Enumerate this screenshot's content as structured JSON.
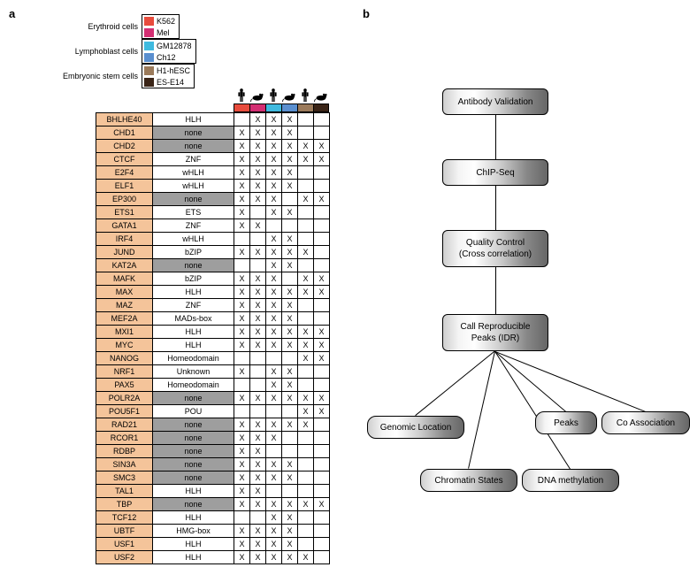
{
  "panels": {
    "a_label": "a",
    "b_label": "b"
  },
  "legend": {
    "groups": [
      {
        "label": "Erythroid cells",
        "items": [
          {
            "name": "K562",
            "color": "#e84c3d"
          },
          {
            "name": "Mel",
            "color": "#d32e72"
          }
        ]
      },
      {
        "label": "Lymphoblast cells",
        "items": [
          {
            "name": "GM12878",
            "color": "#3fbadf"
          },
          {
            "name": "Ch12",
            "color": "#5a8fcf"
          }
        ]
      },
      {
        "label": "Embryonic stem cells",
        "items": [
          {
            "name": "H1-hESC",
            "color": "#9b7a5a"
          },
          {
            "name": "ES-E14",
            "color": "#3a2417"
          }
        ]
      }
    ]
  },
  "columns": [
    {
      "color": "#e84c3d",
      "species": "human"
    },
    {
      "color": "#d32e72",
      "species": "mouse"
    },
    {
      "color": "#3fbadf",
      "species": "human"
    },
    {
      "color": "#5a8fcf",
      "species": "mouse"
    },
    {
      "color": "#9b7a5a",
      "species": "human"
    },
    {
      "color": "#3a2417",
      "species": "mouse"
    }
  ],
  "rows": [
    {
      "gene": "BHLHE40",
      "domain": "HLH",
      "none": false,
      "cells": [
        "",
        "X",
        "X",
        "X",
        "",
        ""
      ]
    },
    {
      "gene": "CHD1",
      "domain": "none",
      "none": true,
      "cells": [
        "X",
        "X",
        "X",
        "X",
        "",
        ""
      ]
    },
    {
      "gene": "CHD2",
      "domain": "none",
      "none": true,
      "cells": [
        "X",
        "X",
        "X",
        "X",
        "X",
        "X"
      ]
    },
    {
      "gene": "CTCF",
      "domain": "ZNF",
      "none": false,
      "cells": [
        "X",
        "X",
        "X",
        "X",
        "X",
        "X"
      ]
    },
    {
      "gene": "E2F4",
      "domain": "wHLH",
      "none": false,
      "cells": [
        "X",
        "X",
        "X",
        "X",
        "",
        ""
      ]
    },
    {
      "gene": "ELF1",
      "domain": "wHLH",
      "none": false,
      "cells": [
        "X",
        "X",
        "X",
        "X",
        "",
        ""
      ]
    },
    {
      "gene": "EP300",
      "domain": "none",
      "none": true,
      "cells": [
        "X",
        "X",
        "X",
        "",
        "X",
        "X"
      ]
    },
    {
      "gene": "ETS1",
      "domain": "ETS",
      "none": false,
      "cells": [
        "X",
        "",
        "X",
        "X",
        "",
        ""
      ]
    },
    {
      "gene": "GATA1",
      "domain": "ZNF",
      "none": false,
      "cells": [
        "X",
        "X",
        "",
        "",
        "",
        ""
      ]
    },
    {
      "gene": "IRF4",
      "domain": "wHLH",
      "none": false,
      "cells": [
        "",
        "",
        "X",
        "X",
        "",
        ""
      ]
    },
    {
      "gene": "JUND",
      "domain": "bZIP",
      "none": false,
      "cells": [
        "X",
        "X",
        "X",
        "X",
        "X",
        ""
      ]
    },
    {
      "gene": "KAT2A",
      "domain": "none",
      "none": true,
      "cells": [
        "",
        "",
        "X",
        "X",
        "",
        ""
      ]
    },
    {
      "gene": "MAFK",
      "domain": "bZIP",
      "none": false,
      "cells": [
        "X",
        "X",
        "X",
        "",
        "X",
        "X"
      ]
    },
    {
      "gene": "MAX",
      "domain": "HLH",
      "none": false,
      "cells": [
        "X",
        "X",
        "X",
        "X",
        "X",
        "X"
      ]
    },
    {
      "gene": "MAZ",
      "domain": "ZNF",
      "none": false,
      "cells": [
        "X",
        "X",
        "X",
        "X",
        "",
        ""
      ]
    },
    {
      "gene": "MEF2A",
      "domain": "MADs-box",
      "none": false,
      "cells": [
        "X",
        "X",
        "X",
        "X",
        "",
        ""
      ]
    },
    {
      "gene": "MXI1",
      "domain": "HLH",
      "none": false,
      "cells": [
        "X",
        "X",
        "X",
        "X",
        "X",
        "X"
      ]
    },
    {
      "gene": "MYC",
      "domain": "HLH",
      "none": false,
      "cells": [
        "X",
        "X",
        "X",
        "X",
        "X",
        "X"
      ]
    },
    {
      "gene": "NANOG",
      "domain": "Homeodomain",
      "none": false,
      "cells": [
        "",
        "",
        "",
        "",
        "X",
        "X"
      ]
    },
    {
      "gene": "NRF1",
      "domain": "Unknown",
      "none": false,
      "cells": [
        "X",
        "",
        "X",
        "X",
        "",
        ""
      ]
    },
    {
      "gene": "PAX5",
      "domain": "Homeodomain",
      "none": false,
      "cells": [
        "",
        "",
        "X",
        "X",
        "",
        ""
      ]
    },
    {
      "gene": "POLR2A",
      "domain": "none",
      "none": true,
      "cells": [
        "X",
        "X",
        "X",
        "X",
        "X",
        "X"
      ]
    },
    {
      "gene": "POU5F1",
      "domain": "POU",
      "none": false,
      "cells": [
        "",
        "",
        "",
        "",
        "X",
        "X"
      ]
    },
    {
      "gene": "RAD21",
      "domain": "none",
      "none": true,
      "cells": [
        "X",
        "X",
        "X",
        "X",
        "X",
        ""
      ]
    },
    {
      "gene": "RCOR1",
      "domain": "none",
      "none": true,
      "cells": [
        "X",
        "X",
        "X",
        "",
        "",
        ""
      ]
    },
    {
      "gene": "RDBP",
      "domain": "none",
      "none": true,
      "cells": [
        "X",
        "X",
        "",
        "",
        "",
        ""
      ]
    },
    {
      "gene": "SIN3A",
      "domain": "none",
      "none": true,
      "cells": [
        "X",
        "X",
        "X",
        "X",
        "",
        ""
      ]
    },
    {
      "gene": "SMC3",
      "domain": "none",
      "none": true,
      "cells": [
        "X",
        "X",
        "X",
        "X",
        "",
        ""
      ]
    },
    {
      "gene": "TAL1",
      "domain": "HLH",
      "none": false,
      "cells": [
        "X",
        "X",
        "",
        "",
        "",
        ""
      ]
    },
    {
      "gene": "TBP",
      "domain": "none",
      "none": true,
      "cells": [
        "X",
        "X",
        "X",
        "X",
        "X",
        "X"
      ]
    },
    {
      "gene": "TCF12",
      "domain": "HLH",
      "none": false,
      "cells": [
        "",
        "",
        "X",
        "X",
        "",
        ""
      ]
    },
    {
      "gene": "UBTF",
      "domain": "HMG-box",
      "none": false,
      "cells": [
        "X",
        "X",
        "X",
        "X",
        "",
        ""
      ]
    },
    {
      "gene": "USF1",
      "domain": "HLH",
      "none": false,
      "cells": [
        "X",
        "X",
        "X",
        "X",
        "",
        ""
      ]
    },
    {
      "gene": "USF2",
      "domain": "HLH",
      "none": false,
      "cells": [
        "X",
        "X",
        "X",
        "X",
        "X",
        ""
      ]
    }
  ],
  "flow": {
    "pipeline": [
      "Antibody Validation",
      "ChIP-Seq",
      "Quality Control\n(Cross correlation)",
      "Call Reproducible\nPeaks (IDR)"
    ],
    "leaves": [
      "Genomic Location",
      "Chromatin States",
      "DNA methylation",
      "Peaks",
      "Co Association"
    ]
  }
}
